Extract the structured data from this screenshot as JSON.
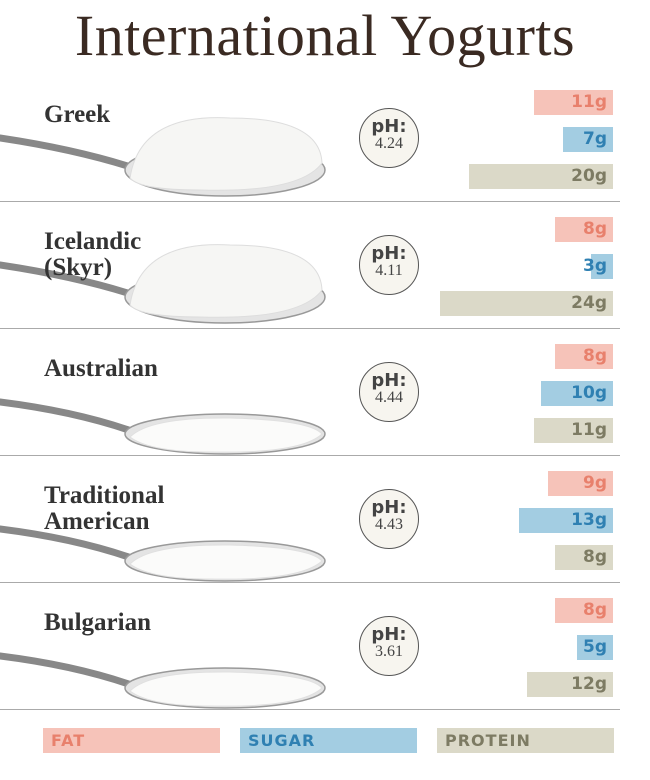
{
  "chart_data": {
    "type": "bar",
    "title": "International Yogurts",
    "ph_label": "pH:",
    "categories": [
      "Greek",
      "Icelandic (Skyr)",
      "Australian",
      "Traditional American",
      "Bulgarian"
    ],
    "ph": [
      4.24,
      4.11,
      4.44,
      4.43,
      3.61
    ],
    "series": [
      {
        "name": "FAT",
        "color": "#f6c3b9",
        "text_color": "#e8806c",
        "values": [
          11,
          8,
          8,
          9,
          8
        ],
        "value_labels": [
          "11g",
          "8g",
          "8g",
          "9g",
          "8g"
        ]
      },
      {
        "name": "SUGAR",
        "color": "#a3cde2",
        "text_color": "#2f80b2",
        "values": [
          7,
          3,
          10,
          13,
          5
        ],
        "value_labels": [
          "7g",
          "3g",
          "10g",
          "13g",
          "5g"
        ]
      },
      {
        "name": "PROTEIN",
        "color": "#dbd9c8",
        "text_color": "#7d7b63",
        "values": [
          20,
          24,
          11,
          8,
          12
        ],
        "value_labels": [
          "20g",
          "24g",
          "11g",
          "8g",
          "12g"
        ]
      }
    ]
  }
}
